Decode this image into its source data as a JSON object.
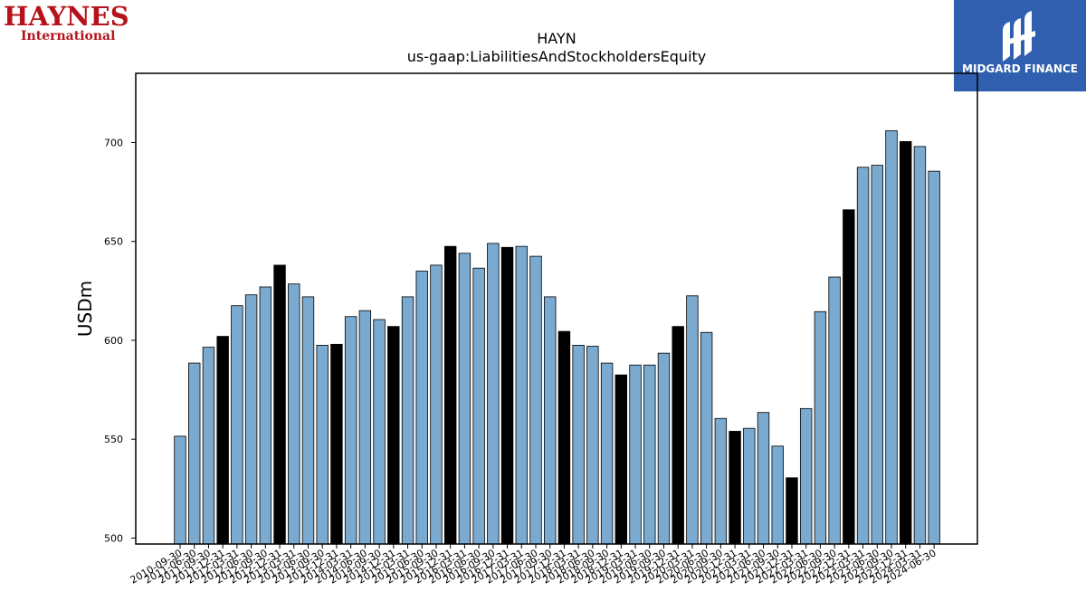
{
  "logos": {
    "left": {
      "brand": "HAYNES",
      "sub": "International",
      "color": "#b5121b"
    },
    "right": {
      "text": "MIDGARD FINANCE",
      "background": "#2f5fae"
    }
  },
  "chart_data": {
    "type": "bar",
    "title": "HAYN",
    "subtitle": "us-gaap:LiabilitiesAndStockholdersEquity",
    "xlabel": "",
    "ylabel": "USDm",
    "ylim": [
      497,
      735
    ],
    "yticks": [
      500,
      550,
      600,
      650,
      700
    ],
    "grid": false,
    "colors": {
      "default": "#7aaad0",
      "highlight": "#000000",
      "edge": "#000000"
    },
    "categories": [
      "2010-09-30",
      "2011-06-30",
      "2011-09-30",
      "2011-12-31",
      "2012-03-31",
      "2012-06-30",
      "2012-09-30",
      "2012-12-31",
      "2013-03-31",
      "2013-06-30",
      "2013-09-30",
      "2013-12-31",
      "2014-03-31",
      "2014-06-30",
      "2014-09-30",
      "2014-12-31",
      "2015-03-31",
      "2015-06-30",
      "2015-09-30",
      "2015-12-31",
      "2016-03-31",
      "2016-06-30",
      "2016-09-30",
      "2016-12-31",
      "2017-03-31",
      "2017-06-30",
      "2017-09-30",
      "2017-12-31",
      "2018-03-31",
      "2018-06-30",
      "2018-09-30",
      "2018-12-31",
      "2019-03-31",
      "2019-06-30",
      "2019-09-30",
      "2019-12-31",
      "2020-03-31",
      "2020-06-30",
      "2020-09-30",
      "2020-12-31",
      "2021-03-31",
      "2021-06-30",
      "2021-09-30",
      "2021-12-31",
      "2022-03-31",
      "2022-06-30",
      "2022-09-30",
      "2022-12-31",
      "2023-03-31",
      "2023-06-30",
      "2023-09-30",
      "2023-12-31",
      "2024-03-31",
      "2024-06-30"
    ],
    "values": [
      551.5,
      588.5,
      596.5,
      602,
      617.5,
      623,
      627,
      638,
      628.5,
      622,
      597.5,
      598,
      612,
      615,
      610.5,
      607,
      622,
      635,
      638,
      647.5,
      644,
      636.5,
      649,
      647,
      647.5,
      642.5,
      622,
      604.5,
      597.5,
      597,
      588.5,
      582.5,
      587.5,
      587.5,
      593.5,
      607,
      622.5,
      604,
      560.5,
      554,
      555.5,
      563.5,
      546.5,
      530.5,
      565.5,
      614.5,
      632,
      666,
      687.5,
      688.5,
      706,
      700.5,
      698,
      685.5
    ],
    "highlight": [
      false,
      false,
      false,
      true,
      false,
      false,
      false,
      true,
      false,
      false,
      false,
      true,
      false,
      false,
      false,
      true,
      false,
      false,
      false,
      true,
      false,
      false,
      false,
      true,
      false,
      false,
      false,
      true,
      false,
      false,
      false,
      true,
      false,
      false,
      false,
      true,
      false,
      false,
      false,
      true,
      false,
      false,
      false,
      true,
      false,
      false,
      false,
      true,
      false,
      false,
      false,
      true,
      false,
      false
    ]
  }
}
